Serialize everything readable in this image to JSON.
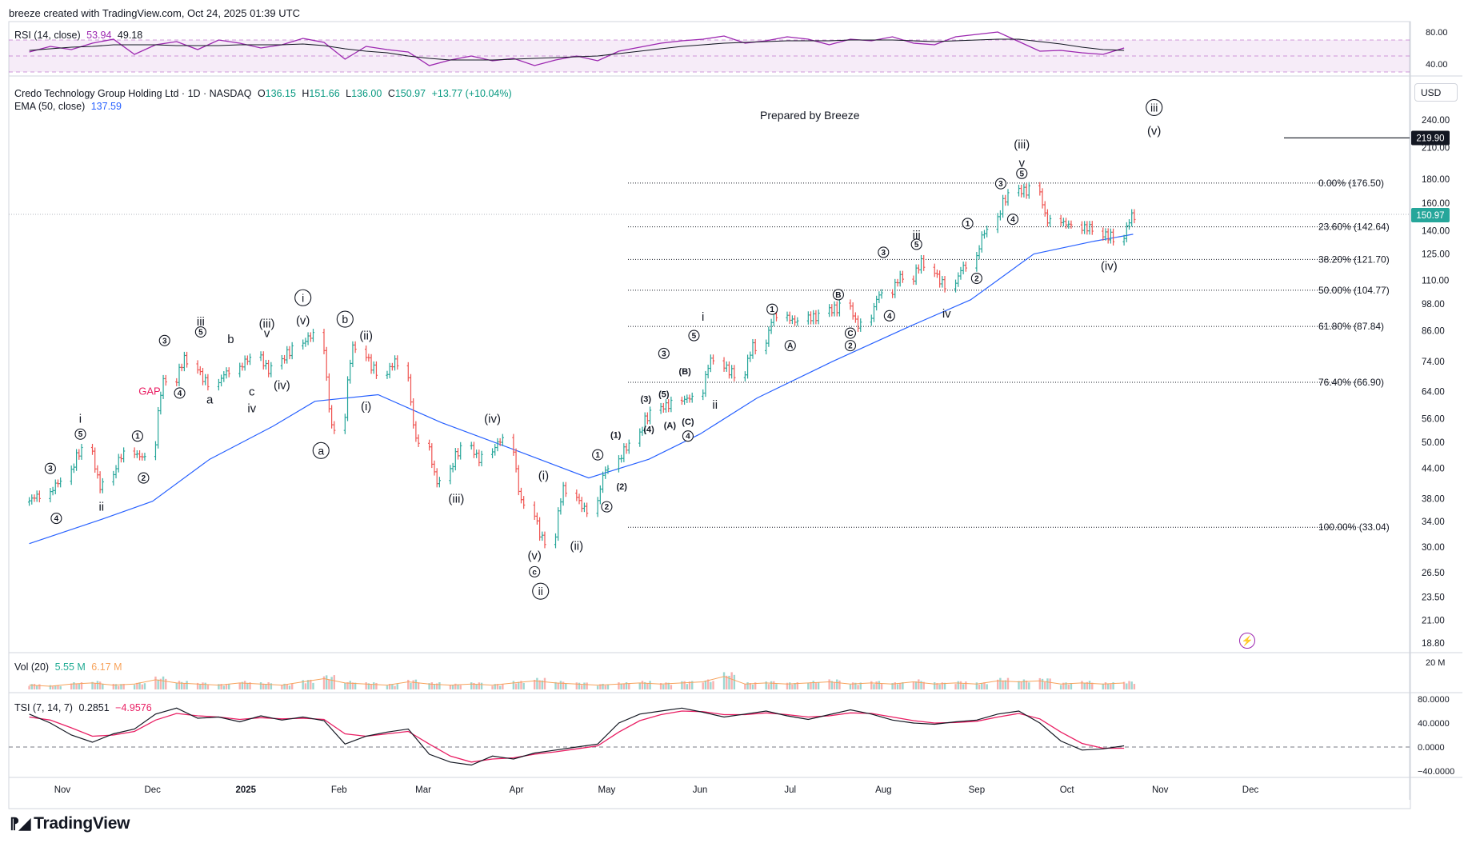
{
  "header": {
    "created_by": "breeze created with TradingView.com, Oct 24, 2025 01:39 UTC"
  },
  "footer": {
    "brand": "TradingView"
  },
  "symbol": {
    "name": "Credo Technology Group Holding Ltd · 1D · NASDAQ",
    "open": "136.15",
    "high": "151.66",
    "low": "136.00",
    "close": "150.97",
    "change": "+13.77 (+10.04%)",
    "o_label": "O",
    "h_label": "H",
    "l_label": "L",
    "c_label": "C"
  },
  "ema": {
    "label": "EMA (50, close)",
    "value": "137.59"
  },
  "rsi": {
    "label": "RSI (14, close)",
    "value": "53.94",
    "value2": "49.18"
  },
  "vol": {
    "label": "Vol (20)",
    "value": "5.55 M",
    "value2": "6.17 M"
  },
  "tsi": {
    "label": "TSI (7, 14, 7)",
    "value": "0.2851",
    "value2": "−4.9576"
  },
  "currency": "USD",
  "note": "Prepared by Breeze",
  "gap_label": "GAP",
  "colors": {
    "up": "#26a69a",
    "down": "#ef5350",
    "ema": "#2962ff",
    "rsi": "#9c27b0",
    "tsi_signal": "#e91e63",
    "vol_ma": "#f7a35c"
  },
  "chart_data": {
    "type": "ohlc",
    "price_scale": "log",
    "x_labels": [
      "Nov",
      "Dec",
      "2025",
      "Feb",
      "Mar",
      "Apr",
      "May",
      "Jun",
      "Jul",
      "Aug",
      "Sep",
      "Oct",
      "Nov",
      "Dec"
    ],
    "y_ticks": [
      "240.00",
      "210.00",
      "180.00",
      "160.00",
      "140.00",
      "125.00",
      "110.00",
      "98.00",
      "86.00",
      "74.00",
      "64.00",
      "56.00",
      "50.00",
      "44.00",
      "38.00",
      "34.00",
      "30.00",
      "26.50",
      "23.50",
      "21.00",
      "18.80"
    ],
    "price_tags": {
      "last": "150.97",
      "target": "219.90"
    },
    "close_series": [
      [
        "2024-10-21",
        38.5
      ],
      [
        "2024-10-28",
        41.2
      ],
      [
        "2024-11-04",
        47.8
      ],
      [
        "2024-11-11",
        40.2
      ],
      [
        "2024-11-18",
        47.0
      ],
      [
        "2024-11-25",
        46.5
      ],
      [
        "2024-12-02",
        68.0
      ],
      [
        "2024-12-09",
        75.0
      ],
      [
        "2024-12-16",
        67.0
      ],
      [
        "2024-12-23",
        70.5
      ],
      [
        "2024-12-30",
        75.0
      ],
      [
        "2025-01-06",
        71.0
      ],
      [
        "2025-01-13",
        78.0
      ],
      [
        "2025-01-20",
        84.0
      ],
      [
        "2025-01-27",
        53.0
      ],
      [
        "2025-02-03",
        80.0
      ],
      [
        "2025-02-10",
        71.0
      ],
      [
        "2025-02-17",
        74.0
      ],
      [
        "2025-02-24",
        50.0
      ],
      [
        "2025-03-03",
        41.0
      ],
      [
        "2025-03-10",
        48.0
      ],
      [
        "2025-03-17",
        46.0
      ],
      [
        "2025-03-24",
        50.5
      ],
      [
        "2025-03-31",
        37.0
      ],
      [
        "2025-04-07",
        31.0
      ],
      [
        "2025-04-14",
        40.0
      ],
      [
        "2025-04-21",
        36.0
      ],
      [
        "2025-04-28",
        44.0
      ],
      [
        "2025-05-05",
        49.0
      ],
      [
        "2025-05-12",
        57.0
      ],
      [
        "2025-05-19",
        60.0
      ],
      [
        "2025-05-26",
        62.0
      ],
      [
        "2025-06-02",
        75.0
      ],
      [
        "2025-06-09",
        70.0
      ],
      [
        "2025-06-16",
        80.0
      ],
      [
        "2025-06-23",
        93.0
      ],
      [
        "2025-06-30",
        90.0
      ],
      [
        "2025-07-07",
        92.0
      ],
      [
        "2025-07-14",
        96.0
      ],
      [
        "2025-07-21",
        88.0
      ],
      [
        "2025-07-28",
        103.0
      ],
      [
        "2025-08-04",
        112.0
      ],
      [
        "2025-08-11",
        120.0
      ],
      [
        "2025-08-18",
        108.0
      ],
      [
        "2025-08-25",
        118.0
      ],
      [
        "2025-09-01",
        140.0
      ],
      [
        "2025-09-08",
        165.0
      ],
      [
        "2025-09-15",
        170.0
      ],
      [
        "2025-09-22",
        146.0
      ],
      [
        "2025-09-29",
        144.0
      ],
      [
        "2025-10-06",
        142.0
      ],
      [
        "2025-10-13",
        136.0
      ],
      [
        "2025-10-20",
        150.97
      ]
    ],
    "ema50": [
      [
        "2024-10-21",
        30.5
      ],
      [
        "2024-11-15",
        34.5
      ],
      [
        "2024-12-01",
        37.5
      ],
      [
        "2024-12-20",
        46.0
      ],
      [
        "2025-01-10",
        54.0
      ],
      [
        "2025-01-24",
        61.0
      ],
      [
        "2025-02-14",
        63.0
      ],
      [
        "2025-03-07",
        55.0
      ],
      [
        "2025-04-01",
        48.0
      ],
      [
        "2025-04-25",
        42.0
      ],
      [
        "2025-05-15",
        46.0
      ],
      [
        "2025-06-01",
        52.0
      ],
      [
        "2025-06-20",
        62.0
      ],
      [
        "2025-07-15",
        74.0
      ],
      [
        "2025-08-10",
        88.0
      ],
      [
        "2025-08-30",
        100.0
      ],
      [
        "2025-09-20",
        125.0
      ],
      [
        "2025-10-10",
        133.0
      ],
      [
        "2025-10-23",
        137.59
      ]
    ],
    "fibonacci": [
      {
        "level": "0.00%",
        "price": 176.5,
        "label": "0.00% (176.50)"
      },
      {
        "level": "23.60%",
        "price": 142.64,
        "label": "23.60% (142.64)"
      },
      {
        "level": "38.20%",
        "price": 121.7,
        "label": "38.20% (121.70)"
      },
      {
        "level": "50.00%",
        "price": 104.77,
        "label": "50.00% (104.77)"
      },
      {
        "level": "61.80%",
        "price": 87.84,
        "label": "61.80% (87.84)"
      },
      {
        "level": "76.40%",
        "price": 66.9,
        "label": "76.40% (66.90)"
      },
      {
        "level": "100.00%",
        "price": 33.04,
        "label": "100.00% (33.04)"
      }
    ],
    "rsi_ticks": [
      "80.00",
      "40.00"
    ],
    "rsi_series": [
      55,
      62,
      58,
      66,
      71,
      52,
      64,
      68,
      58,
      70,
      66,
      60,
      64,
      72,
      67,
      46,
      62,
      58,
      55,
      38,
      45,
      50,
      44,
      47,
      38,
      45,
      50,
      44,
      56,
      61,
      66,
      69,
      71,
      75,
      66,
      69,
      74,
      71,
      64,
      71,
      69,
      74,
      66,
      64,
      74,
      77,
      80,
      68,
      56,
      57,
      54,
      52,
      60
    ],
    "rsi_ma_series": [
      57,
      59,
      61,
      62,
      64,
      64,
      64,
      63,
      63,
      63,
      64,
      64,
      64,
      65,
      63,
      59,
      56,
      54,
      50,
      47,
      45,
      45,
      45,
      46,
      47,
      48,
      49,
      50,
      53,
      56,
      59,
      62,
      64,
      66,
      67,
      68,
      69,
      69,
      69,
      70,
      70,
      70,
      69,
      68,
      69,
      70,
      71,
      71,
      68,
      65,
      61,
      58,
      57
    ],
    "vol_ticks": [
      "20 M"
    ],
    "vol_series": [
      4,
      3,
      5,
      6,
      4,
      5,
      9,
      6,
      5,
      4,
      6,
      5,
      4,
      7,
      10,
      6,
      5,
      4,
      7,
      5,
      4,
      5,
      4,
      6,
      8,
      6,
      5,
      4,
      5,
      6,
      5,
      6,
      7,
      12,
      5,
      6,
      5,
      6,
      7,
      5,
      6,
      5,
      7,
      5,
      6,
      5,
      8,
      7,
      8,
      5,
      6,
      5,
      6
    ],
    "tsi_ticks": [
      "80.0000",
      "40.0000",
      "0.0000",
      "−40.0000"
    ],
    "tsi_series": [
      55,
      40,
      20,
      8,
      22,
      30,
      55,
      65,
      48,
      50,
      42,
      52,
      45,
      50,
      44,
      5,
      18,
      25,
      30,
      -12,
      -25,
      -30,
      -15,
      -20,
      -10,
      -5,
      0,
      5,
      40,
      55,
      60,
      65,
      58,
      50,
      55,
      60,
      52,
      46,
      54,
      62,
      55,
      45,
      40,
      38,
      42,
      45,
      55,
      60,
      40,
      10,
      -5,
      -3,
      2
    ],
    "tsi_signal_series": [
      50,
      45,
      32,
      18,
      20,
      26,
      45,
      56,
      52,
      50,
      46,
      49,
      47,
      48,
      46,
      22,
      18,
      22,
      26,
      5,
      -15,
      -25,
      -20,
      -18,
      -12,
      -8,
      -3,
      2,
      25,
      44,
      54,
      60,
      59,
      54,
      54,
      57,
      54,
      50,
      52,
      57,
      56,
      50,
      44,
      40,
      41,
      43,
      50,
      56,
      47,
      25,
      6,
      -2,
      -2
    ]
  },
  "waves": [
    {
      "d": "2024-10-28",
      "p": 44.0,
      "t": "3",
      "s": "c"
    },
    {
      "d": "2024-10-30",
      "p": 34.5,
      "t": "4",
      "s": "c"
    },
    {
      "d": "2024-11-07",
      "p": 56.0,
      "t": "i",
      "s": "p"
    },
    {
      "d": "2024-11-07",
      "p": 52.0,
      "t": "5",
      "s": "c"
    },
    {
      "d": "2024-11-14",
      "p": 36.5,
      "t": "ii",
      "s": "p"
    },
    {
      "d": "2024-11-26",
      "p": 51.5,
      "t": "1",
      "s": "c"
    },
    {
      "d": "2024-11-28",
      "p": 42.0,
      "t": "2",
      "s": "c"
    },
    {
      "d": "2024-11-30",
      "p": 63.0,
      "t": "GAP",
      "s": "g"
    },
    {
      "d": "2024-12-05",
      "p": 82.0,
      "t": "3",
      "s": "c"
    },
    {
      "d": "2024-12-10",
      "p": 63.5,
      "t": "4",
      "s": "c"
    },
    {
      "d": "2024-12-17",
      "p": 90.0,
      "t": "iii",
      "s": "p"
    },
    {
      "d": "2024-12-17",
      "p": 85.5,
      "t": "5",
      "s": "c"
    },
    {
      "d": "2024-12-20",
      "p": 61.5,
      "t": "a",
      "s": "p"
    },
    {
      "d": "2024-12-27",
      "p": 82.5,
      "t": "b",
      "s": "p"
    },
    {
      "d": "2025-01-03",
      "p": 64.0,
      "t": "c",
      "s": "p"
    },
    {
      "d": "2025-01-03",
      "p": 59.0,
      "t": "iv",
      "s": "p"
    },
    {
      "d": "2025-01-08",
      "p": 89.0,
      "t": "(iii)",
      "s": "p"
    },
    {
      "d": "2025-01-08",
      "p": 85.0,
      "t": "v",
      "s": "p"
    },
    {
      "d": "2025-01-13",
      "p": 66.0,
      "t": "(iv)",
      "s": "p"
    },
    {
      "d": "2025-01-20",
      "p": 101.0,
      "t": "i",
      "s": "c"
    },
    {
      "d": "2025-01-20",
      "p": 90.5,
      "t": "(v)",
      "s": "p"
    },
    {
      "d": "2025-01-26",
      "p": 48.0,
      "t": "a",
      "s": "c"
    },
    {
      "d": "2025-02-03",
      "p": 91.0,
      "t": "b",
      "s": "c"
    },
    {
      "d": "2025-02-10",
      "p": 84.0,
      "t": "(ii)",
      "s": "p"
    },
    {
      "d": "2025-02-10",
      "p": 59.5,
      "t": "(i)",
      "s": "p"
    },
    {
      "d": "2025-03-12",
      "p": 38.0,
      "t": "(iii)",
      "s": "p"
    },
    {
      "d": "2025-03-24",
      "p": 56.0,
      "t": "(iv)",
      "s": "p"
    },
    {
      "d": "2025-04-07",
      "p": 28.8,
      "t": "(v)",
      "s": "p"
    },
    {
      "d": "2025-04-07",
      "p": 26.6,
      "t": "c",
      "s": "c"
    },
    {
      "d": "2025-04-09",
      "p": 24.2,
      "t": "ii",
      "s": "c"
    },
    {
      "d": "2025-04-10",
      "p": 42.5,
      "t": "(i)",
      "s": "p"
    },
    {
      "d": "2025-04-21",
      "p": 30.2,
      "t": "(ii)",
      "s": "p"
    },
    {
      "d": "2025-04-28",
      "p": 47.0,
      "t": "1",
      "s": "c"
    },
    {
      "d": "2025-05-01",
      "p": 36.5,
      "t": "2",
      "s": "c"
    },
    {
      "d": "2025-05-04",
      "p": 52.0,
      "t": "(1)",
      "s": "b"
    },
    {
      "d": "2025-05-06",
      "p": 40.5,
      "t": "(2)",
      "s": "b"
    },
    {
      "d": "2025-05-14",
      "p": 62.0,
      "t": "(3)",
      "s": "b"
    },
    {
      "d": "2025-05-15",
      "p": 53.5,
      "t": "(4)",
      "s": "b"
    },
    {
      "d": "2025-05-20",
      "p": 77.0,
      "t": "3",
      "s": "c"
    },
    {
      "d": "2025-05-20",
      "p": 63.5,
      "t": "(5)",
      "s": "b"
    },
    {
      "d": "2025-05-22",
      "p": 54.5,
      "t": "(A)",
      "s": "b"
    },
    {
      "d": "2025-05-27",
      "p": 71.0,
      "t": "(B)",
      "s": "b"
    },
    {
      "d": "2025-05-28",
      "p": 55.5,
      "t": "(C)",
      "s": "b"
    },
    {
      "d": "2025-05-28",
      "p": 51.5,
      "t": "4",
      "s": "c"
    },
    {
      "d": "2025-05-30",
      "p": 84.0,
      "t": "5",
      "s": "c"
    },
    {
      "d": "2025-06-02",
      "p": 92.0,
      "t": "i",
      "s": "p"
    },
    {
      "d": "2025-06-06",
      "p": 60.0,
      "t": "ii",
      "s": "p"
    },
    {
      "d": "2025-06-25",
      "p": 95.5,
      "t": "1",
      "s": "c"
    },
    {
      "d": "2025-07-01",
      "p": 80.0,
      "t": "A",
      "s": "c"
    },
    {
      "d": "2025-07-17",
      "p": 102.5,
      "t": "B",
      "s": "c"
    },
    {
      "d": "2025-07-21",
      "p": 85.0,
      "t": "C",
      "s": "c"
    },
    {
      "d": "2025-07-21",
      "p": 80.0,
      "t": "2",
      "s": "c"
    },
    {
      "d": "2025-08-01",
      "p": 126.0,
      "t": "3",
      "s": "c"
    },
    {
      "d": "2025-08-03",
      "p": 92.5,
      "t": "4",
      "s": "c"
    },
    {
      "d": "2025-08-12",
      "p": 137.0,
      "t": "iii",
      "s": "p"
    },
    {
      "d": "2025-08-12",
      "p": 131.0,
      "t": "5",
      "s": "c"
    },
    {
      "d": "2025-08-22",
      "p": 93.5,
      "t": "iv",
      "s": "p"
    },
    {
      "d": "2025-08-29",
      "p": 145.0,
      "t": "1",
      "s": "c"
    },
    {
      "d": "2025-09-01",
      "p": 111.0,
      "t": "2",
      "s": "c"
    },
    {
      "d": "2025-09-09",
      "p": 176.0,
      "t": "3",
      "s": "c"
    },
    {
      "d": "2025-09-13",
      "p": 148.0,
      "t": "4",
      "s": "c"
    },
    {
      "d": "2025-09-16",
      "p": 213.0,
      "t": "(iii)",
      "s": "p"
    },
    {
      "d": "2025-09-16",
      "p": 195.0,
      "t": "v",
      "s": "p"
    },
    {
      "d": "2025-09-16",
      "p": 185.0,
      "t": "5",
      "s": "c"
    },
    {
      "d": "2025-10-15",
      "p": 118.0,
      "t": "(iv)",
      "s": "p"
    },
    {
      "d": "2025-10-30",
      "p": 255.0,
      "t": "iii",
      "s": "c"
    },
    {
      "d": "2025-10-30",
      "p": 227.5,
      "t": "(v)",
      "s": "p"
    }
  ]
}
